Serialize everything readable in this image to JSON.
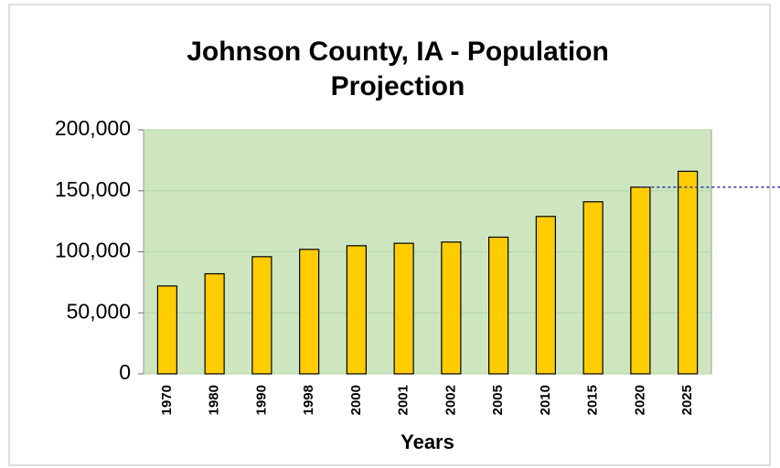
{
  "chart_data": {
    "type": "bar",
    "title": "Johnson County, IA - Population Projection",
    "x_label": "Years",
    "categories": [
      "1970",
      "1980",
      "1990",
      "1998",
      "2000",
      "2001",
      "2002",
      "2005",
      "2010",
      "2015",
      "2020",
      "2025"
    ],
    "values": [
      72000,
      82000,
      96000,
      102000,
      105000,
      107000,
      108000,
      112000,
      129000,
      141000,
      153000,
      166000
    ],
    "color": "#ffcc00",
    "ylim": [
      0,
      200000
    ],
    "yticks": [
      0,
      {
        "value": 50000,
        "label": "50,000"
      },
      {
        "value": 100000,
        "label": "100,000"
      },
      {
        "value": 150000,
        "label": "150,000"
      },
      {
        "value": 200000,
        "label": "200,000"
      }
    ],
    "grid": true,
    "plot_background": "#cde6c0",
    "reference_line": {
      "value": 153000,
      "color": "#333399"
    }
  }
}
